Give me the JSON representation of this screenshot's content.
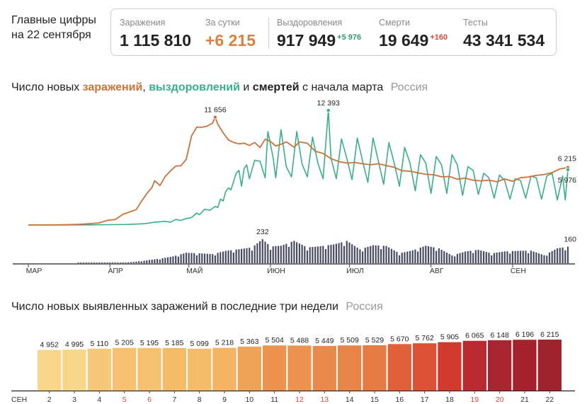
{
  "header": {
    "title_line1": "Главные цифры",
    "title_line2": "на 22 сентября"
  },
  "stats": {
    "infections": {
      "label": "Заражения",
      "value": "1 115 810"
    },
    "daily": {
      "label": "За сутки",
      "value": "+6 215"
    },
    "recoveries": {
      "label": "Выздоровления",
      "value": "917 949",
      "delta": "+5 976"
    },
    "deaths": {
      "label": "Смерти",
      "value": "19 649",
      "delta": "+160"
    },
    "tests": {
      "label": "Тесты",
      "value": "43 341 534"
    }
  },
  "colors": {
    "infections": "#c8733b",
    "recoveries": "#3aad8d",
    "deaths": "#2b2b45",
    "green_delta": "#2a9d6e",
    "red_delta": "#e04a3a",
    "muted": "#9a9a9a"
  },
  "main_chart_title": {
    "prefix": "Число новых ",
    "infections": "заражений",
    "sep1": ", ",
    "recoveries": "выздоровлений",
    "sep2": " и ",
    "deaths": "смертей",
    "suffix": " с начала марта",
    "region": "Россия"
  },
  "bar_chart_title": {
    "text": "Число новых выявленных заражений в последние три недели",
    "region": "Россия"
  },
  "chart_data": [
    {
      "type": "line",
      "x_start": "2020-03-01",
      "x_end": "2020-09-22",
      "x_tick_labels": [
        "МАР",
        "АПР",
        "МАЙ",
        "ИЮН",
        "ИЮЛ",
        "АВГ",
        "СЕН"
      ],
      "ylim": [
        0,
        13000
      ],
      "series": [
        {
          "key": "infections",
          "points": [
            [
              "2020-03-01",
              0
            ],
            [
              "2020-03-08",
              3
            ],
            [
              "2020-03-15",
              20
            ],
            [
              "2020-03-20",
              60
            ],
            [
              "2020-03-25",
              160
            ],
            [
              "2020-03-28",
              230
            ],
            [
              "2020-03-31",
              500
            ],
            [
              "2020-04-03",
              600
            ],
            [
              "2020-04-06",
              1154
            ],
            [
              "2020-04-09",
              1459
            ],
            [
              "2020-04-11",
              1667
            ],
            [
              "2020-04-13",
              2558
            ],
            [
              "2020-04-15",
              3388
            ],
            [
              "2020-04-17",
              4070
            ],
            [
              "2020-04-18",
              4785
            ],
            [
              "2020-04-20",
              4268
            ],
            [
              "2020-04-22",
              5236
            ],
            [
              "2020-04-24",
              5849
            ],
            [
              "2020-04-26",
              6361
            ],
            [
              "2020-04-28",
              6411
            ],
            [
              "2020-04-30",
              7099
            ],
            [
              "2020-05-02",
              9623
            ],
            [
              "2020-05-04",
              10581
            ],
            [
              "2020-05-06",
              10559
            ],
            [
              "2020-05-08",
              10699
            ],
            [
              "2020-05-10",
              11012
            ],
            [
              "2020-05-11",
              11656
            ],
            [
              "2020-05-12",
              10899
            ],
            [
              "2020-05-14",
              9974
            ],
            [
              "2020-05-16",
              9200
            ],
            [
              "2020-05-18",
              8926
            ],
            [
              "2020-05-20",
              8764
            ],
            [
              "2020-05-22",
              8849
            ],
            [
              "2020-05-24",
              8599
            ],
            [
              "2020-05-26",
              8915
            ],
            [
              "2020-05-28",
              8371
            ],
            [
              "2020-05-30",
              9268
            ],
            [
              "2020-06-01",
              9035
            ],
            [
              "2020-06-03",
              8536
            ],
            [
              "2020-06-05",
              8726
            ],
            [
              "2020-06-07",
              8984
            ],
            [
              "2020-06-10",
              8404
            ],
            [
              "2020-06-12",
              8987
            ],
            [
              "2020-06-15",
              8835
            ],
            [
              "2020-06-18",
              7972
            ],
            [
              "2020-06-21",
              7728
            ],
            [
              "2020-06-24",
              7176
            ],
            [
              "2020-06-27",
              6852
            ],
            [
              "2020-06-30",
              6693
            ],
            [
              "2020-07-03",
              6760
            ],
            [
              "2020-07-06",
              6611
            ],
            [
              "2020-07-09",
              6509
            ],
            [
              "2020-07-12",
              6615
            ],
            [
              "2020-07-15",
              6422
            ],
            [
              "2020-07-18",
              6234
            ],
            [
              "2020-07-21",
              5862
            ],
            [
              "2020-07-24",
              5811
            ],
            [
              "2020-07-27",
              5635
            ],
            [
              "2020-07-30",
              5475
            ],
            [
              "2020-08-02",
              5427
            ],
            [
              "2020-08-05",
              5204
            ],
            [
              "2020-08-08",
              5241
            ],
            [
              "2020-08-11",
              4945
            ],
            [
              "2020-08-14",
              5061
            ],
            [
              "2020-08-17",
              4839
            ],
            [
              "2020-08-20",
              4767
            ],
            [
              "2020-08-23",
              4852
            ],
            [
              "2020-08-26",
              4676
            ],
            [
              "2020-08-29",
              4980
            ],
            [
              "2020-09-01",
              4729
            ],
            [
              "2020-09-04",
              5110
            ],
            [
              "2020-09-07",
              5195
            ],
            [
              "2020-09-10",
              5363
            ],
            [
              "2020-09-13",
              5449
            ],
            [
              "2020-09-16",
              5670
            ],
            [
              "2020-09-19",
              6065
            ],
            [
              "2020-09-22",
              6215
            ]
          ]
        },
        {
          "key": "recoveries",
          "points": [
            [
              "2020-03-01",
              0
            ],
            [
              "2020-03-15",
              5
            ],
            [
              "2020-03-25",
              15
            ],
            [
              "2020-04-01",
              40
            ],
            [
              "2020-04-08",
              60
            ],
            [
              "2020-04-14",
              140
            ],
            [
              "2020-04-18",
              300
            ],
            [
              "2020-04-22",
              400
            ],
            [
              "2020-04-24",
              300
            ],
            [
              "2020-04-26",
              600
            ],
            [
              "2020-04-28",
              500
            ],
            [
              "2020-04-30",
              700
            ],
            [
              "2020-05-02",
              800
            ],
            [
              "2020-05-04",
              1300
            ],
            [
              "2020-05-05",
              1100
            ],
            [
              "2020-05-07",
              1700
            ],
            [
              "2020-05-09",
              1600
            ],
            [
              "2020-05-11",
              2000
            ],
            [
              "2020-05-12",
              1900
            ],
            [
              "2020-05-13",
              2800
            ],
            [
              "2020-05-14",
              2600
            ],
            [
              "2020-05-15",
              3600
            ],
            [
              "2020-05-16",
              4000
            ],
            [
              "2020-05-17",
              3800
            ],
            [
              "2020-05-19",
              5600
            ],
            [
              "2020-05-20",
              5900
            ],
            [
              "2020-05-21",
              4200
            ],
            [
              "2020-05-22",
              6100
            ],
            [
              "2020-05-23",
              6500
            ],
            [
              "2020-05-24",
              5000
            ],
            [
              "2020-05-26",
              7000
            ],
            [
              "2020-05-28",
              6900
            ],
            [
              "2020-05-30",
              5100
            ],
            [
              "2020-05-31",
              10100
            ],
            [
              "2020-06-02",
              7300
            ],
            [
              "2020-06-03",
              5100
            ],
            [
              "2020-06-05",
              10300
            ],
            [
              "2020-06-07",
              6300
            ],
            [
              "2020-06-09",
              5200
            ],
            [
              "2020-06-11",
              10100
            ],
            [
              "2020-06-13",
              6600
            ],
            [
              "2020-06-15",
              5200
            ],
            [
              "2020-06-17",
              9500
            ],
            [
              "2020-06-19",
              6700
            ],
            [
              "2020-06-21",
              5000
            ],
            [
              "2020-06-23",
              12393
            ],
            [
              "2020-06-24",
              7200
            ],
            [
              "2020-06-26",
              5000
            ],
            [
              "2020-06-28",
              9300
            ],
            [
              "2020-06-30",
              7200
            ],
            [
              "2020-07-02",
              4900
            ],
            [
              "2020-07-04",
              9400
            ],
            [
              "2020-07-06",
              6900
            ],
            [
              "2020-07-08",
              4600
            ],
            [
              "2020-07-10",
              9400
            ],
            [
              "2020-07-12",
              6900
            ],
            [
              "2020-07-14",
              4400
            ],
            [
              "2020-07-16",
              8900
            ],
            [
              "2020-07-18",
              6700
            ],
            [
              "2020-07-20",
              4200
            ],
            [
              "2020-07-22",
              8400
            ],
            [
              "2020-07-24",
              6700
            ],
            [
              "2020-07-26",
              3700
            ],
            [
              "2020-07-28",
              7600
            ],
            [
              "2020-07-30",
              6700
            ],
            [
              "2020-08-01",
              3400
            ],
            [
              "2020-08-03",
              7400
            ],
            [
              "2020-08-05",
              6500
            ],
            [
              "2020-08-07",
              3400
            ],
            [
              "2020-08-09",
              7600
            ],
            [
              "2020-08-11",
              6500
            ],
            [
              "2020-08-13",
              3200
            ],
            [
              "2020-08-15",
              6300
            ],
            [
              "2020-08-17",
              5900
            ],
            [
              "2020-08-19",
              3300
            ],
            [
              "2020-08-21",
              5600
            ],
            [
              "2020-08-23",
              5100
            ],
            [
              "2020-08-25",
              2900
            ],
            [
              "2020-08-27",
              5400
            ],
            [
              "2020-08-29",
              4800
            ],
            [
              "2020-08-31",
              2800
            ],
            [
              "2020-09-02",
              5000
            ],
            [
              "2020-09-04",
              4800
            ],
            [
              "2020-09-06",
              2900
            ],
            [
              "2020-09-08",
              5300
            ],
            [
              "2020-09-10",
              5100
            ],
            [
              "2020-09-12",
              2800
            ],
            [
              "2020-09-14",
              5300
            ],
            [
              "2020-09-16",
              5600
            ],
            [
              "2020-09-18",
              2700
            ],
            [
              "2020-09-20",
              5300
            ],
            [
              "2020-09-21",
              2700
            ],
            [
              "2020-09-22",
              5976
            ]
          ]
        },
        {
          "key": "deaths",
          "ylim": [
            0,
            260
          ],
          "points": [
            [
              "2020-03-20",
              1
            ],
            [
              "2020-03-31",
              2
            ],
            [
              "2020-04-05",
              4
            ],
            [
              "2020-04-10",
              12
            ],
            [
              "2020-04-15",
              28
            ],
            [
              "2020-04-20",
              44
            ],
            [
              "2020-04-25",
              66
            ],
            [
              "2020-04-30",
              101
            ],
            [
              "2020-05-05",
              95
            ],
            [
              "2020-05-10",
              88
            ],
            [
              "2020-05-15",
              119
            ],
            [
              "2020-05-20",
              135
            ],
            [
              "2020-05-25",
              153
            ],
            [
              "2020-05-29",
              232
            ],
            [
              "2020-06-01",
              162
            ],
            [
              "2020-06-05",
              169
            ],
            [
              "2020-06-10",
              216
            ],
            [
              "2020-06-15",
              153
            ],
            [
              "2020-06-20",
              164
            ],
            [
              "2020-06-25",
              181
            ],
            [
              "2020-06-30",
              216
            ],
            [
              "2020-07-05",
              135
            ],
            [
              "2020-07-10",
              174
            ],
            [
              "2020-07-15",
              167
            ],
            [
              "2020-07-20",
              96
            ],
            [
              "2020-07-25",
              124
            ],
            [
              "2020-07-30",
              169
            ],
            [
              "2020-08-04",
              144
            ],
            [
              "2020-08-09",
              75
            ],
            [
              "2020-08-14",
              113
            ],
            [
              "2020-08-19",
              129
            ],
            [
              "2020-08-24",
              95
            ],
            [
              "2020-08-29",
              114
            ],
            [
              "2020-09-03",
              119
            ],
            [
              "2020-09-08",
              122
            ],
            [
              "2020-09-13",
              77
            ],
            [
              "2020-09-18",
              144
            ],
            [
              "2020-09-22",
              160
            ]
          ]
        }
      ],
      "annotations": [
        {
          "series": "infections",
          "x": "2020-05-11",
          "y": 11656,
          "label": "11 656"
        },
        {
          "series": "recoveries",
          "x": "2020-06-23",
          "y": 12393,
          "label": "12 393"
        },
        {
          "series": "deaths",
          "x": "2020-05-29",
          "y": 232,
          "label": "232"
        },
        {
          "series": "infections",
          "x": "2020-09-22",
          "y": 6215,
          "label": "6 215"
        },
        {
          "series": "recoveries",
          "x": "2020-09-22",
          "y": 5976,
          "label": "5 976"
        },
        {
          "series": "deaths",
          "x": "2020-09-22",
          "y": 160,
          "label": "160"
        }
      ]
    },
    {
      "type": "bar",
      "xlabel_prefix": "СЕН",
      "categories": [
        "2",
        "3",
        "4",
        "5",
        "6",
        "7",
        "8",
        "9",
        "10",
        "11",
        "12",
        "13",
        "14",
        "15",
        "16",
        "17",
        "18",
        "19",
        "20",
        "21",
        "22"
      ],
      "weekend": [
        "5",
        "6",
        "12",
        "13",
        "19",
        "20"
      ],
      "values": [
        4952,
        4995,
        5110,
        5205,
        5195,
        5185,
        5099,
        5218,
        5363,
        5504,
        5488,
        5449,
        5509,
        5529,
        5670,
        5762,
        5905,
        6065,
        6148,
        6196,
        6215
      ],
      "value_labels": [
        "4 952",
        "4 995",
        "5 110",
        "5 205",
        "5 195",
        "5 185",
        "5 099",
        "5 218",
        "5 363",
        "5 504",
        "5 488",
        "5 449",
        "5 509",
        "5 529",
        "5 670",
        "5 762",
        "5 905",
        "6 065",
        "6 148",
        "6 196",
        "6 215"
      ],
      "colors": [
        "#f7d68a",
        "#f7d68a",
        "#f5c979",
        "#f5c170",
        "#f5c170",
        "#f4bc68",
        "#f4bc68",
        "#f3b363",
        "#efa358",
        "#ec944f",
        "#ec944f",
        "#e98a4a",
        "#e88448",
        "#e67c44",
        "#e0603a",
        "#dc5237",
        "#d23a2f",
        "#b82a2f",
        "#a8242e",
        "#a3222d",
        "#9e212d"
      ]
    }
  ]
}
